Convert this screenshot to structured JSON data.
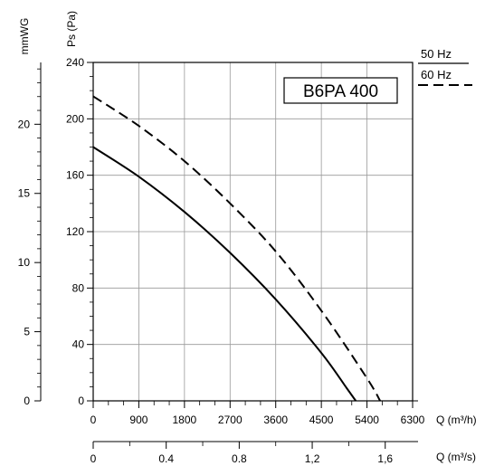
{
  "chart_data": {
    "type": "line",
    "model_label": "B6PA 400",
    "xlabel": "Q (m³/h)",
    "x_range": [
      0,
      6300
    ],
    "x_ticks": [
      0,
      900,
      1800,
      2700,
      3600,
      4500,
      5400,
      6300
    ],
    "x_tick_labels": [
      "0",
      "900",
      "1800",
      "2700",
      "3600",
      "4500",
      "5400",
      "6300"
    ],
    "x2label": "Q (m³/s)",
    "x2_range": [
      0,
      1.75
    ],
    "x2_ticks": [
      0,
      0.4,
      0.8,
      1.2,
      1.6
    ],
    "x2_tick_labels": [
      "0",
      "0.4",
      "0.8",
      "1,2",
      "1,6"
    ],
    "ylabel": "Ps (Pa)",
    "y_range": [
      0,
      240
    ],
    "y_ticks": [
      0,
      40,
      80,
      120,
      160,
      200,
      240
    ],
    "y_tick_labels": [
      "0",
      "40",
      "80",
      "120",
      "160",
      "200",
      "240"
    ],
    "y2label": "mmWG",
    "y2_range": [
      0,
      24.47
    ],
    "y2_ticks": [
      0,
      5,
      10,
      15,
      20
    ],
    "y2_tick_labels": [
      "0",
      "5",
      "10",
      "15",
      "20"
    ],
    "grid": true,
    "legend_position": "top-right",
    "series": [
      {
        "name": "50 Hz",
        "style": "solid",
        "x": [
          0,
          900,
          1800,
          2700,
          3600,
          4500,
          5000,
          5180
        ],
        "y": [
          180,
          159,
          134,
          105,
          72,
          34,
          9,
          0
        ]
      },
      {
        "name": "60 Hz",
        "style": "dashed",
        "x": [
          0,
          900,
          1800,
          2700,
          3600,
          4500,
          5400,
          5660
        ],
        "y": [
          216,
          195,
          170,
          140,
          106,
          64,
          16,
          0
        ]
      }
    ]
  }
}
